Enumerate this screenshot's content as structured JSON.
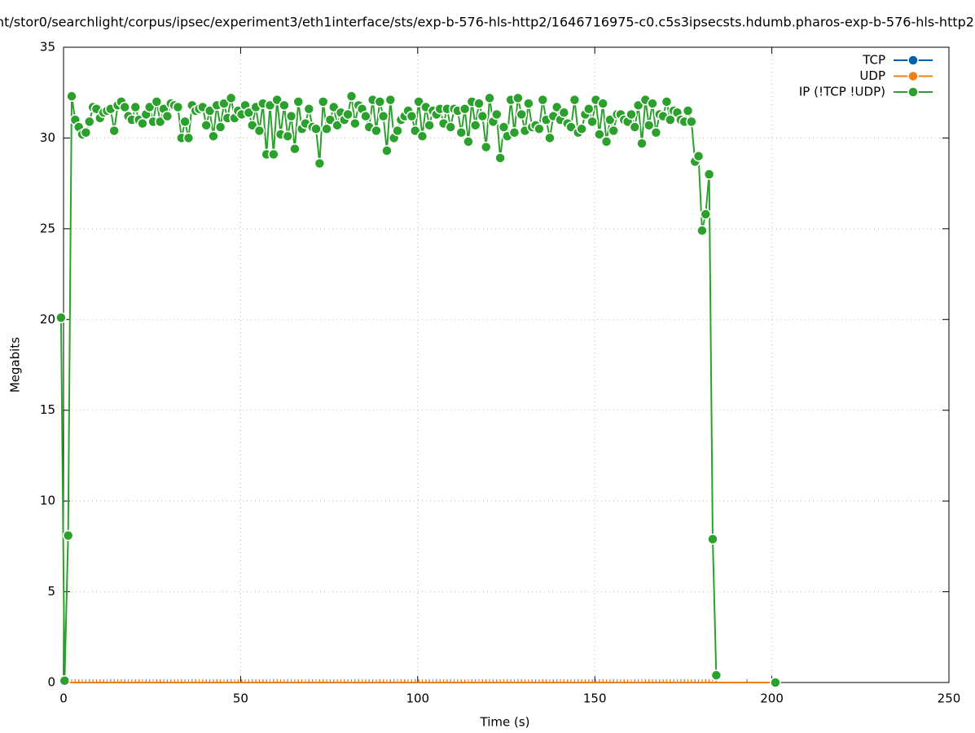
{
  "chart_data": {
    "type": "line",
    "title": "nt/stor0/searchlight/corpus/ipsec/experiment3/eth1interface/sts/exp-b-576-hls-http2/1646716975-c0.c5s3ipsecsts.hdumb.pharos-exp-b-576-hls-http2.",
    "x_label": "Time (s)",
    "y_label": "Megabits",
    "xlim": [
      0,
      250
    ],
    "xticks": [
      0,
      50,
      100,
      150,
      200,
      250
    ],
    "ylim": [
      0,
      35
    ],
    "yticks": [
      0,
      5,
      10,
      15,
      20,
      25,
      30,
      35
    ],
    "grid": true,
    "legend": "top-right",
    "x": [
      -0.7,
      0.3,
      1.3,
      2.3,
      3.3,
      4.3,
      5.3,
      6.3,
      7.3,
      8.3,
      9.3,
      10.3,
      11.3,
      12.3,
      13.3,
      14.3,
      15.3,
      16.3,
      17.3,
      18.3,
      19.3,
      20.3,
      21.3,
      22.3,
      23.3,
      24.3,
      25.3,
      26.3,
      27.3,
      28.3,
      29.3,
      30.3,
      31.3,
      32.3,
      33.3,
      34.3,
      35.3,
      36.3,
      37.3,
      38.3,
      39.3,
      40.3,
      41.3,
      42.3,
      43.3,
      44.3,
      45.3,
      46.3,
      47.3,
      48.3,
      49.3,
      50.3,
      51.3,
      52.3,
      53.3,
      54.3,
      55.3,
      56.3,
      57.3,
      58.3,
      59.3,
      60.3,
      61.3,
      62.3,
      63.3,
      64.3,
      65.3,
      66.3,
      67.3,
      68.3,
      69.3,
      70.3,
      71.3,
      72.3,
      73.3,
      74.3,
      75.3,
      76.3,
      77.3,
      78.3,
      79.3,
      80.3,
      81.3,
      82.3,
      83.3,
      84.3,
      85.3,
      86.3,
      87.3,
      88.3,
      89.3,
      90.3,
      91.3,
      92.3,
      93.3,
      94.3,
      95.3,
      96.3,
      97.3,
      98.3,
      99.3,
      100.3,
      101.3,
      102.3,
      103.3,
      104.3,
      105.3,
      106.3,
      107.3,
      108.3,
      109.3,
      110.3,
      111.3,
      112.3,
      113.3,
      114.3,
      115.3,
      116.3,
      117.3,
      118.3,
      119.3,
      120.3,
      121.3,
      122.3,
      123.3,
      124.3,
      125.3,
      126.3,
      127.3,
      128.3,
      129.3,
      130.3,
      131.3,
      132.3,
      133.3,
      134.3,
      135.3,
      136.3,
      137.3,
      138.3,
      139.3,
      140.3,
      141.3,
      142.3,
      143.3,
      144.3,
      145.3,
      146.3,
      147.3,
      148.3,
      149.3,
      150.3,
      151.3,
      152.3,
      153.3,
      154.3,
      155.3,
      156.3,
      157.3,
      158.3,
      159.3,
      160.3,
      161.3,
      162.3,
      163.3,
      164.3,
      165.3,
      166.3,
      167.3,
      168.3,
      169.3,
      170.3,
      171.3,
      172.3,
      173.3,
      174.3,
      175.3,
      176.3,
      177.3,
      178.3,
      179.3,
      180.3,
      181.3,
      182.3,
      183.3,
      184.3,
      193,
      201
    ],
    "series": [
      {
        "name": "TCP",
        "color": "#0060ad",
        "values": [
          0,
          0,
          0,
          0,
          0,
          0,
          0,
          0,
          0,
          0,
          0,
          0,
          0,
          0,
          0,
          0,
          0,
          0,
          0,
          0,
          0,
          0,
          0,
          0,
          0,
          0,
          0,
          0,
          0,
          0,
          0,
          0,
          0,
          0,
          0,
          0,
          0,
          0,
          0,
          0,
          0,
          0,
          0,
          0,
          0,
          0,
          0,
          0,
          0,
          0,
          0,
          0,
          0,
          0,
          0,
          0,
          0,
          0,
          0,
          0,
          0,
          0,
          0,
          0,
          0,
          0,
          0,
          0,
          0,
          0,
          0,
          0,
          0,
          0,
          0,
          0,
          0,
          0,
          0,
          0,
          0,
          0,
          0,
          0,
          0,
          0,
          0,
          0,
          0,
          0,
          0,
          0,
          0,
          0,
          0,
          0,
          0,
          0,
          0,
          0,
          0,
          0,
          0,
          0,
          0,
          0,
          0,
          0,
          0,
          0,
          0,
          0,
          0,
          0,
          0,
          0,
          0,
          0,
          0,
          0,
          0,
          0,
          0,
          0,
          0,
          0,
          0,
          0,
          0,
          0,
          0,
          0,
          0,
          0,
          0,
          0,
          0,
          0,
          0,
          0,
          0,
          0,
          0,
          0,
          0,
          0,
          0,
          0,
          0,
          0,
          0,
          0,
          0,
          0,
          0,
          0,
          0,
          0,
          0,
          0,
          0,
          0,
          0,
          0,
          0,
          0,
          0,
          0,
          0,
          0,
          0,
          0,
          0,
          0,
          0,
          0,
          0,
          0,
          0,
          0,
          0,
          0,
          0,
          0,
          0,
          0,
          0,
          0
        ]
      },
      {
        "name": "UDP",
        "color": "#f07f1a",
        "values": [
          0,
          0,
          0,
          0,
          0,
          0,
          0,
          0,
          0,
          0,
          0,
          0,
          0,
          0,
          0,
          0,
          0,
          0,
          0,
          0,
          0,
          0,
          0,
          0,
          0,
          0,
          0,
          0,
          0,
          0,
          0,
          0,
          0,
          0,
          0,
          0,
          0,
          0,
          0,
          0,
          0,
          0,
          0,
          0,
          0,
          0,
          0,
          0,
          0,
          0,
          0,
          0,
          0,
          0,
          0,
          0,
          0,
          0,
          0,
          0,
          0,
          0,
          0,
          0,
          0,
          0,
          0,
          0,
          0,
          0,
          0,
          0,
          0,
          0,
          0,
          0,
          0,
          0,
          0,
          0,
          0,
          0,
          0,
          0,
          0,
          0,
          0,
          0,
          0,
          0,
          0,
          0,
          0,
          0,
          0,
          0,
          0,
          0,
          0,
          0,
          0,
          0,
          0,
          0,
          0,
          0,
          0,
          0,
          0,
          0,
          0,
          0,
          0,
          0,
          0,
          0,
          0,
          0,
          0,
          0,
          0,
          0,
          0,
          0,
          0,
          0,
          0,
          0,
          0,
          0,
          0,
          0,
          0,
          0,
          0,
          0,
          0,
          0,
          0,
          0,
          0,
          0,
          0,
          0,
          0,
          0,
          0,
          0,
          0,
          0,
          0,
          0,
          0,
          0,
          0,
          0,
          0,
          0,
          0,
          0,
          0,
          0,
          0,
          0,
          0,
          0,
          0,
          0,
          0,
          0,
          0,
          0,
          0,
          0,
          0,
          0,
          0,
          0,
          0,
          0,
          0,
          0,
          0,
          0,
          0,
          0,
          0,
          0
        ]
      },
      {
        "name": "IP (!TCP  !UDP)",
        "color": "#2ca02c",
        "values": [
          20.1,
          0.1,
          8.1,
          32.3,
          31.0,
          30.6,
          30.2,
          30.3,
          30.9,
          31.7,
          31.6,
          31.1,
          31.4,
          31.5,
          31.6,
          30.4,
          31.8,
          32.0,
          31.7,
          31.2,
          31.0,
          31.7,
          31.0,
          30.8,
          31.3,
          31.7,
          30.9,
          32.0,
          30.9,
          31.6,
          31.2,
          31.9,
          31.8,
          31.7,
          30.0,
          30.9,
          30.0,
          31.8,
          31.5,
          31.6,
          31.7,
          30.7,
          31.5,
          30.1,
          31.8,
          30.6,
          31.9,
          31.1,
          32.2,
          31.1,
          31.5,
          31.3,
          31.8,
          31.4,
          30.7,
          31.7,
          30.4,
          31.9,
          29.1,
          31.8,
          29.1,
          32.1,
          30.2,
          31.8,
          30.1,
          31.2,
          29.4,
          32.0,
          30.5,
          30.8,
          31.6,
          30.6,
          30.5,
          28.6,
          32.0,
          30.5,
          31.0,
          31.7,
          30.7,
          31.4,
          31.0,
          31.3,
          32.3,
          30.8,
          31.8,
          31.6,
          31.2,
          30.6,
          32.1,
          30.4,
          32.0,
          31.2,
          29.3,
          32.1,
          30.0,
          30.4,
          31.0,
          31.2,
          31.5,
          31.2,
          30.4,
          32.0,
          30.1,
          31.7,
          30.7,
          31.5,
          31.3,
          31.6,
          30.8,
          31.6,
          30.6,
          31.6,
          31.5,
          30.3,
          31.6,
          29.8,
          32.0,
          30.7,
          31.9,
          31.2,
          29.5,
          32.2,
          30.9,
          31.3,
          28.9,
          30.6,
          30.1,
          32.1,
          30.3,
          32.2,
          31.3,
          30.4,
          31.9,
          30.6,
          30.7,
          30.5,
          32.1,
          31.0,
          30.0,
          31.2,
          31.7,
          31.0,
          31.4,
          30.8,
          30.6,
          32.1,
          30.3,
          30.5,
          31.3,
          31.6,
          30.9,
          32.1,
          30.2,
          31.9,
          29.8,
          31.0,
          30.4,
          31.3,
          31.3,
          31.0,
          30.9,
          31.3,
          30.6,
          31.8,
          29.7,
          32.1,
          30.7,
          31.9,
          30.3,
          31.3,
          31.2,
          32.0,
          31.0,
          31.5,
          31.4,
          31.0,
          30.9,
          31.5,
          30.9,
          28.7,
          29.0,
          24.9,
          25.8,
          28.0,
          7.9,
          0.4,
          null,
          0
        ]
      }
    ]
  }
}
